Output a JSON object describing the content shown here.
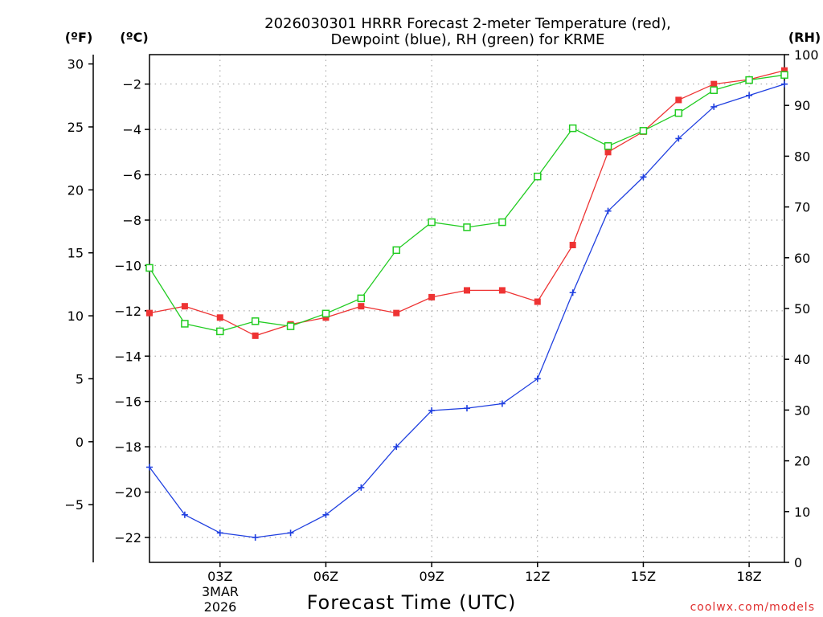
{
  "chart_data": {
    "type": "line",
    "title_line1": "2026030301 HRRR Forecast 2-meter Temperature (red),",
    "title_line2": "Dewpoint (blue), RH (green) for KRME",
    "units": {
      "fahrenheit": "(ºF)",
      "celsius": "(ºC)",
      "rh": "(RH)"
    },
    "xlabel": "Forecast Time (UTC)",
    "date_label_1": "3MAR",
    "date_label_2": "2026",
    "credit": "coolwx.com/models",
    "x_range": [
      1,
      19
    ],
    "x_ticks": [
      {
        "x": 3,
        "label": "03Z"
      },
      {
        "x": 6,
        "label": "06Z"
      },
      {
        "x": 9,
        "label": "09Z"
      },
      {
        "x": 12,
        "label": "12Z"
      },
      {
        "x": 15,
        "label": "15Z"
      },
      {
        "x": 18,
        "label": "18Z"
      }
    ],
    "celsius_range": [
      -23.1,
      -0.7
    ],
    "celsius_ticks": [
      -2,
      -4,
      -6,
      -8,
      -10,
      -12,
      -14,
      -16,
      -18,
      -20,
      -22
    ],
    "fahrenheit_ticks": [
      30,
      25,
      20,
      15,
      10,
      5,
      0,
      -5
    ],
    "rh_range": [
      0,
      100
    ],
    "rh_ticks": [
      100,
      90,
      80,
      70,
      60,
      50,
      40,
      30,
      20,
      10,
      0
    ],
    "hours": [
      1,
      2,
      3,
      4,
      5,
      6,
      7,
      8,
      9,
      10,
      11,
      12,
      13,
      14,
      15,
      16,
      17,
      18,
      19
    ],
    "series": [
      {
        "name": "Temperature (°C)",
        "axis": "celsius",
        "color": "#ee3333",
        "marker": "filled-square",
        "values": [
          -12.1,
          -11.8,
          -12.3,
          -13.1,
          -12.6,
          -12.3,
          -11.8,
          -12.1,
          -11.4,
          -11.1,
          -11.1,
          -11.6,
          -9.1,
          -5.0,
          -4.1,
          -2.7,
          -2.0,
          -1.8,
          -1.4
        ]
      },
      {
        "name": "Dewpoint (°C)",
        "axis": "celsius",
        "color": "#2040e0",
        "marker": "plus",
        "values": [
          -18.9,
          -21.0,
          -21.8,
          -22.0,
          -21.8,
          -21.0,
          -19.8,
          -18.0,
          -16.4,
          -16.3,
          -16.1,
          -15.0,
          -11.2,
          -7.6,
          -6.1,
          -4.4,
          -3.0,
          -2.5,
          -2.0
        ]
      },
      {
        "name": "RH (%)",
        "axis": "rh",
        "color": "#22cc22",
        "marker": "open-square",
        "values": [
          58,
          47,
          45.5,
          47.5,
          46.5,
          49,
          52,
          61.5,
          67,
          66,
          67,
          76,
          85.5,
          82,
          85,
          88.5,
          93,
          95,
          96
        ]
      }
    ]
  }
}
